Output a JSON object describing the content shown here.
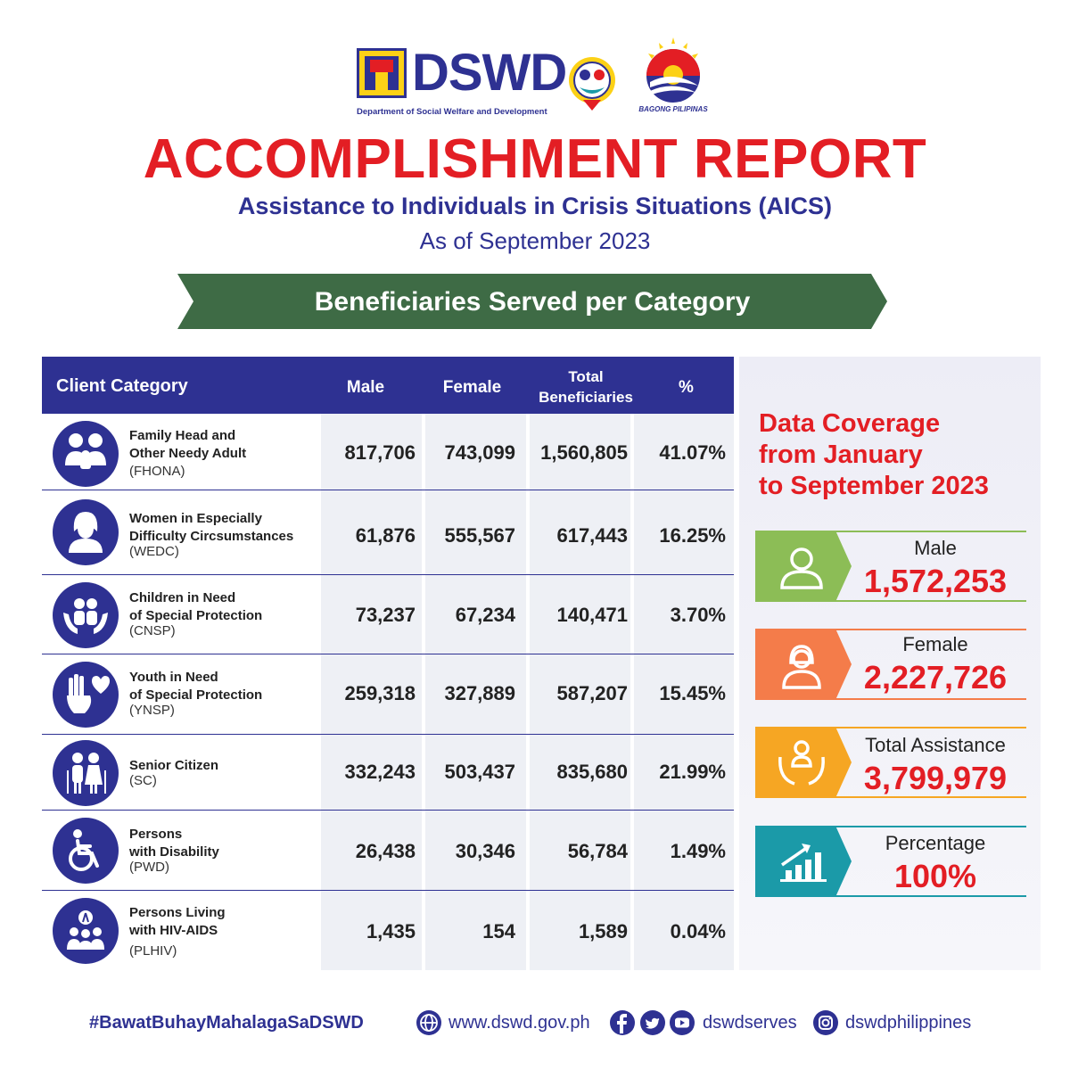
{
  "header": {
    "org_name": "DSWD",
    "org_full": "Department of Social Welfare and Development",
    "partner_logo_text": "BAGONG PILIPINAS",
    "title": "ACCOMPLISHMENT REPORT",
    "subtitle": "Assistance to Individuals in Crisis Situations (AICS)",
    "date": "As of September 2023",
    "banner": "Beneficiaries Served per Category"
  },
  "table": {
    "headers": {
      "category": "Client Category",
      "male": "Male",
      "female": "Female",
      "total_line1": "Total",
      "total_line2": "Beneficiaries",
      "percent": "%"
    },
    "rows": [
      {
        "icon": "family-icon",
        "name1": "Family Head and",
        "name2": "Other Needy Adult",
        "abbr": "(FHONA)",
        "male": "817,706",
        "female": "743,099",
        "total": "1,560,805",
        "percent": "41.07%"
      },
      {
        "icon": "woman-icon",
        "name1": "Women in Especially",
        "name2": "Difficulty Circsumstances",
        "abbr": "(WEDC)",
        "male": "61,876",
        "female": "555,567",
        "total": "617,443",
        "percent": "16.25%"
      },
      {
        "icon": "children-hands-icon",
        "name1": "Children in Need",
        "name2": "of Special Protection",
        "abbr": "(CNSP)",
        "male": "73,237",
        "female": "67,234",
        "total": "140,471",
        "percent": "3.70%"
      },
      {
        "icon": "youth-hands-heart-icon",
        "name1": "Youth in Need",
        "name2": "of Special Protection",
        "abbr": "(YNSP)",
        "male": "259,318",
        "female": "327,889",
        "total": "587,207",
        "percent": "15.45%"
      },
      {
        "icon": "senior-couple-icon",
        "name1": "Senior Citizen",
        "name2": "",
        "abbr": "(SC)",
        "male": "332,243",
        "female": "503,437",
        "total": "835,680",
        "percent": "21.99%"
      },
      {
        "icon": "wheelchair-icon",
        "name1": "Persons",
        "name2": "with Disability",
        "abbr": "(PWD)",
        "male": "26,438",
        "female": "30,346",
        "total": "56,784",
        "percent": "1.49%"
      },
      {
        "icon": "hiv-ribbon-group-icon",
        "name1": "Persons Living",
        "name2": "with HIV-AIDS",
        "abbr": "(PLHIV)",
        "male": "1,435",
        "female": "154",
        "total": "1,589",
        "percent": "0.04%"
      }
    ]
  },
  "panel": {
    "coverage_line1": "Data Coverage",
    "coverage_line2": "from January",
    "coverage_line3": "to September 2023",
    "stats": [
      {
        "label": "Male",
        "value": "1,572,253",
        "color": "#8cbd56",
        "icon": "male-user-icon"
      },
      {
        "label": "Female",
        "value": "2,227,726",
        "color": "#f47c4a",
        "icon": "female-user-icon"
      },
      {
        "label": "Total Assistance",
        "value": "3,799,979",
        "color": "#f6a623",
        "icon": "hands-person-icon"
      },
      {
        "label": "Percentage",
        "value": "100%",
        "color": "#1b9aa8",
        "icon": "growth-chart-icon"
      }
    ]
  },
  "footer": {
    "hashtag": "#BawatBuhayMahalagaSaDSWD",
    "website": "www.dswd.gov.ph",
    "social_handle": "dswdserves",
    "instagram_handle": "dswdphilippines"
  },
  "colors": {
    "navy": "#2e3192",
    "red": "#e31e24",
    "banner_green": "#3e6b45"
  }
}
